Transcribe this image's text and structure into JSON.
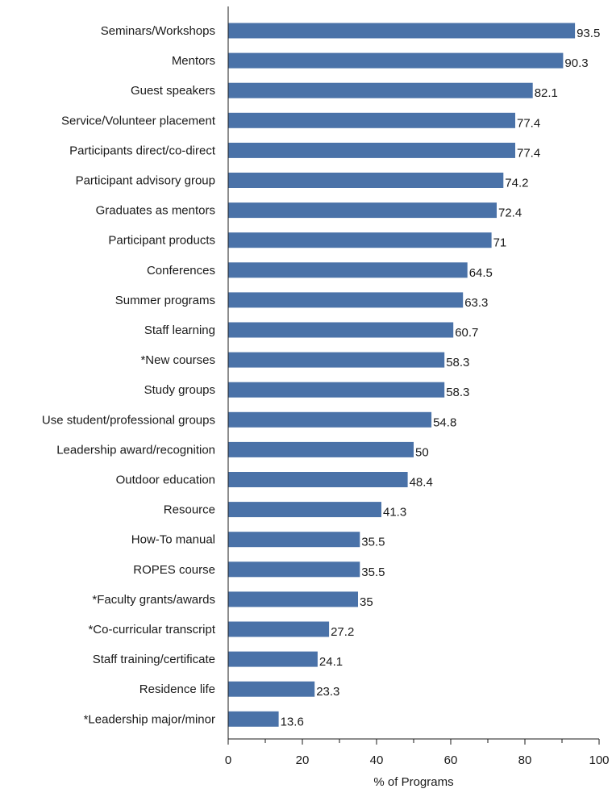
{
  "chart_data": {
    "type": "bar",
    "orientation": "horizontal",
    "categories": [
      "Seminars/Workshops",
      "Mentors",
      "Guest speakers",
      "Service/Volunteer placement",
      "Participants direct/co-direct",
      "Participant advisory group",
      "Graduates as mentors",
      "Participant products",
      "Conferences",
      "Summer programs",
      "Staff learning",
      "*New courses",
      "Study groups",
      "Use student/professional groups",
      "Leadership award/recognition",
      "Outdoor education",
      "Resource",
      "How-To manual",
      "ROPES course",
      "*Faculty grants/awards",
      "*Co-curricular transcript",
      "Staff training/certificate",
      "Residence life",
      "*Leadership major/minor"
    ],
    "values": [
      93.5,
      90.3,
      82.1,
      77.4,
      77.4,
      74.2,
      72.4,
      71,
      64.5,
      63.3,
      60.7,
      58.3,
      58.3,
      54.8,
      50,
      48.4,
      41.3,
      35.5,
      35.5,
      35,
      27.2,
      24.1,
      23.3,
      13.6
    ],
    "value_labels": [
      "93.5",
      "90.3",
      "82.1",
      "77.4",
      "77.4",
      "74.2",
      "72.4",
      "71",
      "64.5",
      "63.3",
      "60.7",
      "58.3",
      "58.3",
      "54.8",
      "50",
      "48.4",
      "41.3",
      "35.5",
      "35.5",
      "35",
      "27.2",
      "24.1",
      "23.3",
      "13.6"
    ],
    "title": "",
    "xlabel": "% of Programs",
    "ylabel": "",
    "xlim": [
      0,
      100
    ],
    "xticks": [
      0,
      20,
      40,
      60,
      80,
      100
    ],
    "xtick_labels": [
      "0",
      "20",
      "40",
      "60",
      "80",
      "100"
    ],
    "grid": false,
    "bar_color": "#4a72a8"
  }
}
